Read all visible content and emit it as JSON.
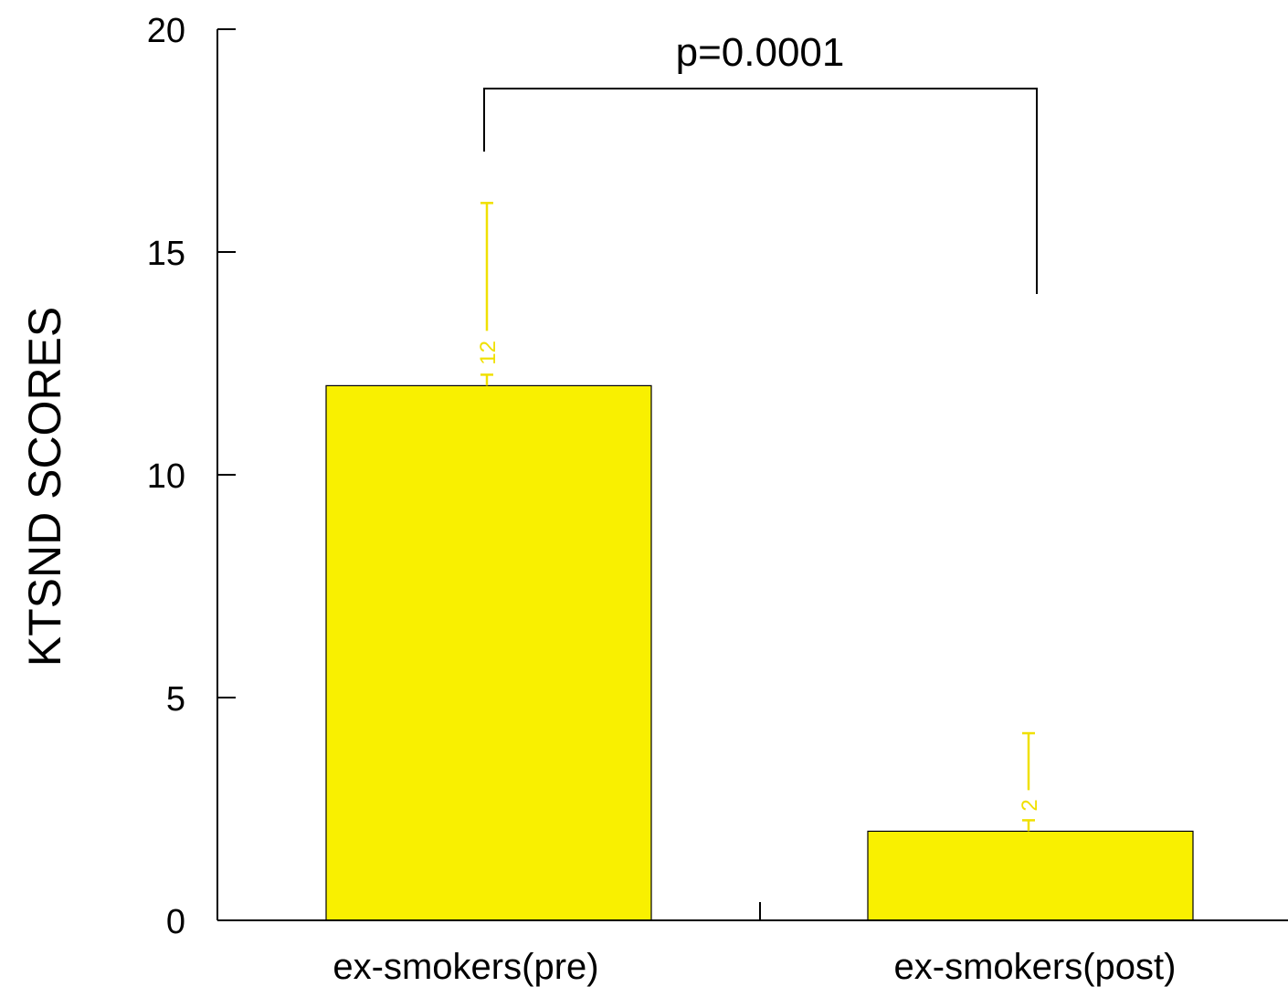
{
  "chart_data": {
    "type": "bar",
    "categories": [
      "ex-smokers(pre)",
      "ex-smokers(post)"
    ],
    "values": [
      12,
      2
    ],
    "error_upper": [
      16.1,
      4.2
    ],
    "data_labels": [
      "12",
      "2"
    ],
    "ylabel": "KTSND SCORES",
    "xlabel": "",
    "ylim": [
      0,
      20
    ],
    "yticks": [
      0,
      5,
      10,
      15,
      20
    ],
    "annotation": "p=0.0001",
    "bar_color": "#f9f000",
    "error_color": "#f0e000",
    "grid": false,
    "legend": "none"
  }
}
